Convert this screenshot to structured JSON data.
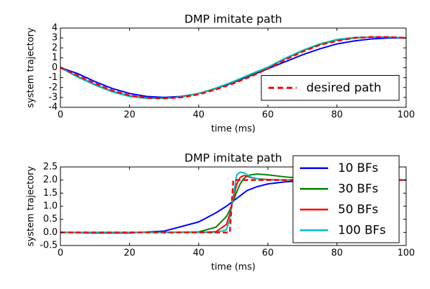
{
  "chart_data": [
    {
      "type": "line",
      "title": "DMP imitate path",
      "x_label": "time (ms)",
      "y_label": "system trajectory",
      "x": [
        0,
        5,
        10,
        15,
        20,
        25,
        30,
        35,
        40,
        45,
        50,
        55,
        60,
        65,
        70,
        75,
        80,
        85,
        90,
        95,
        100
      ],
      "xlim": [
        0,
        100
      ],
      "xticks": [
        0,
        20,
        40,
        60,
        80,
        100
      ],
      "ylim": [
        -4,
        4
      ],
      "yticks": [
        -4,
        -3,
        -2,
        -1,
        0,
        1,
        2,
        3,
        4
      ],
      "legend": "lower right",
      "series": [
        {
          "color": "#0000ff",
          "values": [
            0,
            -0.6,
            -1.4,
            -2.1,
            -2.6,
            -2.9,
            -3.0,
            -2.9,
            -2.6,
            -2.1,
            -1.5,
            -0.8,
            -0.1,
            0.6,
            1.3,
            1.9,
            2.4,
            2.7,
            2.9,
            3.0,
            3.0
          ]
        },
        {
          "color": "#008000",
          "values": [
            0,
            -0.9,
            -1.7,
            -2.4,
            -2.85,
            -3.05,
            -3.1,
            -2.95,
            -2.6,
            -2.1,
            -1.4,
            -0.7,
            0.0,
            0.9,
            1.7,
            2.35,
            2.8,
            3.0,
            3.1,
            3.1,
            3.0
          ]
        },
        {
          "color": "#00bfbf",
          "values": [
            0,
            -0.95,
            -1.75,
            -2.45,
            -2.9,
            -3.1,
            -3.1,
            -2.95,
            -2.6,
            -2.05,
            -1.4,
            -0.65,
            0.05,
            0.95,
            1.75,
            2.4,
            2.85,
            3.05,
            3.1,
            3.1,
            3.0
          ]
        },
        {
          "name": "desired path",
          "color": "#ff0000",
          "dash": true,
          "values": [
            0,
            -0.8,
            -1.6,
            -2.3,
            -2.8,
            -3.05,
            -3.1,
            -3.0,
            -2.7,
            -2.2,
            -1.6,
            -0.9,
            -0.1,
            0.8,
            1.6,
            2.3,
            2.7,
            3.0,
            3.1,
            3.1,
            3.0
          ]
        }
      ]
    },
    {
      "type": "line",
      "title": "DMP imitate path",
      "x_label": "time (ms)",
      "y_label": "system trajectory",
      "x": [
        0,
        10,
        20,
        30,
        40,
        45,
        48,
        49,
        50,
        51,
        52,
        53,
        54,
        55,
        57,
        60,
        65,
        70,
        80,
        90,
        100
      ],
      "xlim": [
        0,
        100
      ],
      "xticks": [
        0,
        20,
        40,
        60,
        80,
        100
      ],
      "ylim": [
        -0.5,
        2.5
      ],
      "yticks": [
        -0.5,
        {
          "value": 0,
          "label": "0.0"
        },
        0.5,
        {
          "value": 1,
          "label": "1.0"
        },
        1.5,
        {
          "value": 2,
          "label": "2.0"
        },
        2.5
      ],
      "legend": "upper right",
      "series": [
        {
          "name": "10 BFs",
          "color": "#0000ff",
          "values": [
            0,
            -0.02,
            -0.02,
            0.05,
            0.4,
            0.75,
            1.0,
            1.1,
            1.2,
            1.3,
            1.4,
            1.5,
            1.6,
            1.65,
            1.75,
            1.85,
            1.93,
            1.97,
            2.0,
            2.0,
            2.0
          ]
        },
        {
          "name": "30 BFs",
          "color": "#008000",
          "values": [
            0,
            0,
            0,
            0,
            0.02,
            0.2,
            0.6,
            0.85,
            1.2,
            1.55,
            1.85,
            2.05,
            2.15,
            2.2,
            2.23,
            2.2,
            2.12,
            2.07,
            2.02,
            2.0,
            2.0
          ]
        },
        {
          "name": "50 BFs",
          "color": "#ff0000",
          "values": [
            0,
            0,
            0,
            0,
            0,
            0.03,
            0.3,
            0.7,
            1.3,
            1.85,
            2.1,
            2.17,
            2.15,
            2.1,
            2.05,
            2.02,
            2.0,
            2.0,
            2.0,
            2.0,
            2.0
          ]
        },
        {
          "name": "100 BFs",
          "color": "#00bfbf",
          "values": [
            0,
            0,
            0,
            0,
            0,
            0,
            0.1,
            0.5,
            1.4,
            2.2,
            2.3,
            2.28,
            2.2,
            2.12,
            2.05,
            2.0,
            2.0,
            2.0,
            2.0,
            2.0,
            2.0
          ]
        },
        {
          "color": "#ff0000",
          "dash": true,
          "values": [
            0,
            0,
            0,
            0,
            0,
            0,
            0,
            0,
            2.0,
            2.0,
            2.0,
            2.0,
            2.0,
            2.0,
            2.0,
            2.0,
            2.0,
            2.0,
            2.0,
            2.0,
            2.0
          ]
        }
      ]
    }
  ]
}
